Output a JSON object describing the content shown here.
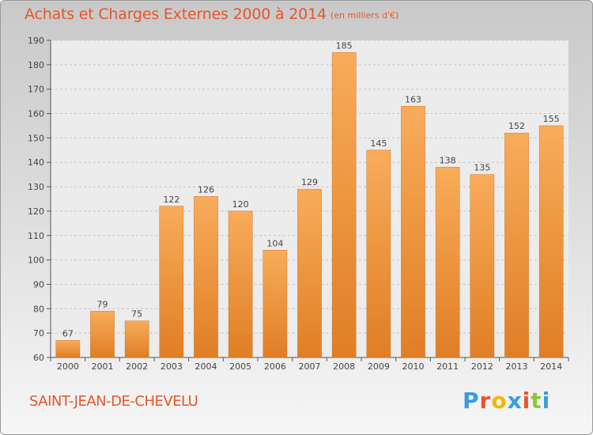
{
  "header": {
    "title": "Achats et Charges Externes 2000 à 2014",
    "unit": "(en milliers d'€)"
  },
  "footer": {
    "commune": "SAINT-JEAN-DE-CHEVELU",
    "logo": "Proxiti",
    "logo_colors": [
      "#3b9be0",
      "#e8552a",
      "#f2b705",
      "#3b9be0",
      "#e8552a",
      "#8cc63f",
      "#3b9be0"
    ]
  },
  "colors": {
    "bar_light": "#f8ac5a",
    "bar_dark": "#e07e25",
    "accent": "#e8552a",
    "grid": "#c4c4c4"
  },
  "chart_data": {
    "type": "bar",
    "categories": [
      "2000",
      "2001",
      "2002",
      "2003",
      "2004",
      "2005",
      "2006",
      "2007",
      "2008",
      "2009",
      "2010",
      "2011",
      "2012",
      "2013",
      "2014"
    ],
    "values": [
      67,
      79,
      75,
      122,
      126,
      120,
      104,
      129,
      185,
      145,
      163,
      138,
      135,
      152,
      155
    ],
    "ylim": [
      60,
      190
    ],
    "yticks": [
      60,
      70,
      80,
      90,
      100,
      110,
      120,
      130,
      140,
      150,
      160,
      170,
      180,
      190
    ],
    "grid": true,
    "data_labels": true
  }
}
